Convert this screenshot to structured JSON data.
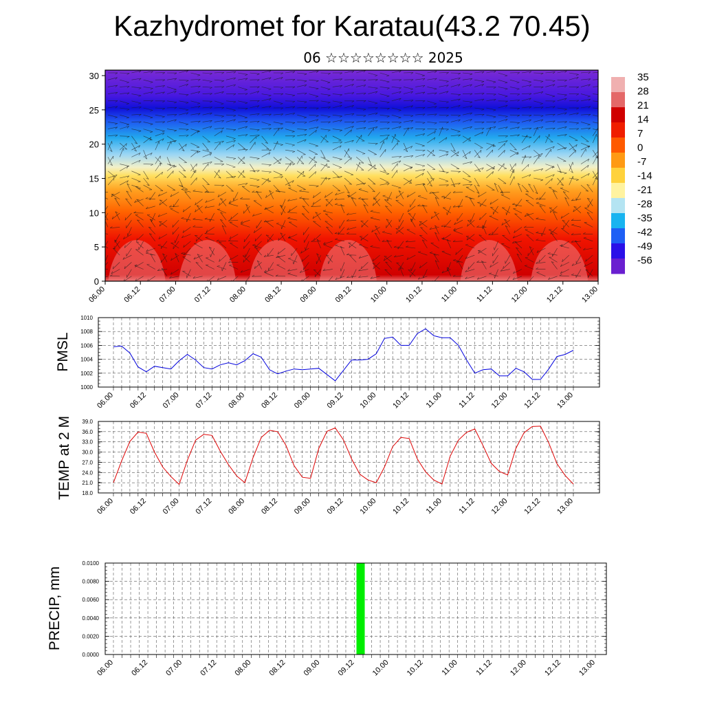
{
  "title": "Kazhydromet for Karatau(43.2 70.45)",
  "subtitle": "06 ☆☆☆☆☆☆☆☆ 2025",
  "colors": {
    "pmsl_line": "#0000dd",
    "temp_line": "#dd0000",
    "precip_bar": "#00ee00",
    "grid": "#555555"
  },
  "chart_data": [
    {
      "type": "heatmap",
      "description_key": "vertical cross-section with wind barbs",
      "x_tick_labels": [
        "06.00",
        "06.12",
        "07.00",
        "07.12",
        "08.00",
        "08.12",
        "09.00",
        "09.12",
        "10.00",
        "10.12",
        "11.00",
        "11.12",
        "12.00",
        "12.12",
        "13.00"
      ],
      "y_ticks": [
        0,
        5,
        10,
        15,
        20,
        25,
        30
      ],
      "ylim": [
        0,
        30.8
      ],
      "colorbar_labels": [
        "35",
        "28",
        "21",
        "14",
        "7",
        "0",
        "-7",
        "-14",
        "-21",
        "-28",
        "-35",
        "-42",
        "-49",
        "-56"
      ],
      "colorbar_range": [
        -63,
        39
      ],
      "colorbar_colors": [
        "#6a1fd0",
        "#2a10e8",
        "#1e5ff5",
        "#18b4f0",
        "#b4e4f2",
        "#fff3a0",
        "#ffd23c",
        "#ff9a14",
        "#ff5a00",
        "#f01e00",
        "#d00000",
        "#e46868",
        "#f0b0b0"
      ]
    },
    {
      "type": "line",
      "ylabel": "PMSL",
      "ylim": [
        1000,
        1010
      ],
      "y_ticks": [
        "1000",
        "1002",
        "1004",
        "1006",
        "1008",
        "1010"
      ],
      "x_tick_labels": [
        "06.00",
        "06.12",
        "07.00",
        "07.12",
        "08.00",
        "08.12",
        "09.00",
        "09.12",
        "10.00",
        "10.12",
        "11.00",
        "11.12",
        "12.00",
        "12.12",
        "13.00"
      ],
      "series": [
        {
          "values": [
            1005.8,
            1005.9,
            1004.9,
            1002.9,
            1002.2,
            1003.0,
            1002.8,
            1002.6,
            1003.8,
            1004.7,
            1003.9,
            1002.8,
            1002.6,
            1003.2,
            1003.5,
            1003.2,
            1003.8,
            1004.8,
            1004.3,
            1002.5,
            1001.9,
            1002.3,
            1002.6,
            1002.5,
            1002.6,
            1002.7,
            1001.8,
            1000.9,
            1002.4,
            1003.9,
            1003.9,
            1004.0,
            1004.8,
            1007.0,
            1007.2,
            1006.0,
            1006.0,
            1007.7,
            1008.4,
            1007.4,
            1007.1,
            1007.1,
            1006.0,
            1003.9,
            1002.0,
            1002.5,
            1002.6,
            1001.6,
            1001.6,
            1002.7,
            1002.2,
            1001.1,
            1001.1,
            1002.6,
            1004.4,
            1004.7,
            1005.3
          ]
        }
      ]
    },
    {
      "type": "line",
      "ylabel": "TEMP at 2 M",
      "ylim": [
        18.0,
        39.0
      ],
      "y_ticks": [
        "18.0",
        "21.0",
        "24.0",
        "27.0",
        "30.0",
        "33.0",
        "36.0",
        "39.0"
      ],
      "x_tick_labels": [
        "06.00",
        "06.12",
        "07.00",
        "07.12",
        "08.00",
        "08.12",
        "09.00",
        "09.12",
        "10.00",
        "10.12",
        "11.00",
        "11.12",
        "12.00",
        "12.12",
        "13.00"
      ],
      "series": [
        {
          "values": [
            21.0,
            27.4,
            33.1,
            35.9,
            35.5,
            30.0,
            25.6,
            22.8,
            20.5,
            27.6,
            33.5,
            35.2,
            34.9,
            30.3,
            26.3,
            23.0,
            21.0,
            28.4,
            34.3,
            36.4,
            36.0,
            32.0,
            26.0,
            22.6,
            22.3,
            31.1,
            36.1,
            37.1,
            33.6,
            28.0,
            23.5,
            21.8,
            21.0,
            25.6,
            31.6,
            34.3,
            34.0,
            28.0,
            24.2,
            21.8,
            20.6,
            28.8,
            33.5,
            35.8,
            36.8,
            31.9,
            26.7,
            24.3,
            23.3,
            31.1,
            35.7,
            37.5,
            37.6,
            32.7,
            26.6,
            23.1,
            20.6
          ]
        }
      ]
    },
    {
      "type": "bar",
      "ylabel": "PRECIP, mm",
      "ylim": [
        0,
        0.01
      ],
      "y_ticks": [
        "0.0000",
        "0.0020",
        "0.0040",
        "0.0060",
        "0.0080",
        "0.0100"
      ],
      "x_tick_labels": [
        "06.00",
        "06.12",
        "07.00",
        "07.12",
        "08.00",
        "08.12",
        "09.00",
        "09.12",
        "10.00",
        "10.12",
        "11.00",
        "11.12",
        "12.00",
        "12.12",
        "13.00"
      ],
      "bars": [
        {
          "x_index": 7.18,
          "value": 0.01
        }
      ]
    }
  ]
}
